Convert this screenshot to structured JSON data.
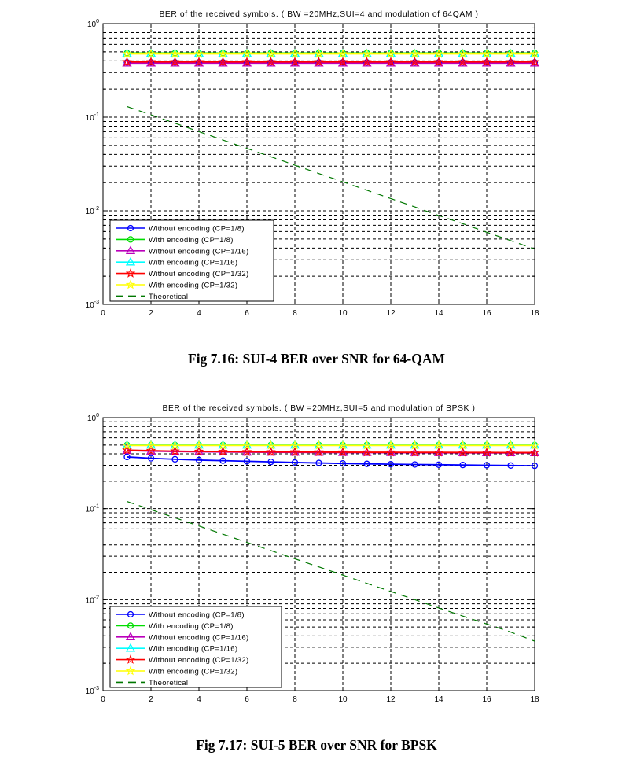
{
  "page": {
    "background": "#ffffff"
  },
  "figures": [
    {
      "caption": "Fig 7.16: SUI-4 BER over SNR for 64-QAM"
    },
    {
      "caption": "Fig 7.17: SUI-5 BER over SNR for BPSK"
    }
  ],
  "chart_data": [
    {
      "type": "line",
      "title": "BER of the received symbols. ( BW =20MHz,SUI=4 and modulation of 64QAM )",
      "xlabel": "",
      "ylabel": "",
      "yscale": "log",
      "xlim": [
        0,
        18
      ],
      "ylim": [
        0.001,
        1
      ],
      "xticks": [
        0,
        2,
        4,
        6,
        8,
        10,
        12,
        14,
        16,
        18
      ],
      "ytick_exponents": [
        0,
        -1,
        -2,
        -3
      ],
      "grid": "dashed-black-major-and-minor",
      "legend_position": "lower-left",
      "x": [
        1,
        2,
        3,
        4,
        5,
        6,
        7,
        8,
        9,
        10,
        11,
        12,
        13,
        14,
        15,
        16,
        17,
        18
      ],
      "series": [
        {
          "name": "Without encoding (CP=1/8)",
          "color": "#0000ff",
          "marker": "circle",
          "line": "solid",
          "values": [
            0.385,
            0.385,
            0.385,
            0.385,
            0.385,
            0.385,
            0.385,
            0.385,
            0.385,
            0.385,
            0.385,
            0.385,
            0.385,
            0.385,
            0.385,
            0.385,
            0.385,
            0.385
          ]
        },
        {
          "name": "With encoding (CP=1/8)",
          "color": "#00dd00",
          "marker": "circle",
          "line": "solid",
          "values": [
            0.485,
            0.485,
            0.485,
            0.485,
            0.485,
            0.485,
            0.485,
            0.485,
            0.485,
            0.485,
            0.485,
            0.485,
            0.485,
            0.485,
            0.485,
            0.485,
            0.485,
            0.485
          ]
        },
        {
          "name": "Without encoding (CP=1/16)",
          "color": "#bb00bb",
          "marker": "triangle",
          "line": "solid",
          "values": [
            0.378,
            0.378,
            0.378,
            0.378,
            0.378,
            0.378,
            0.378,
            0.378,
            0.378,
            0.378,
            0.378,
            0.378,
            0.378,
            0.378,
            0.378,
            0.378,
            0.378,
            0.378
          ]
        },
        {
          "name": "With encoding (CP=1/16)",
          "color": "#00ffff",
          "marker": "triangle",
          "line": "solid",
          "values": [
            0.48,
            0.48,
            0.48,
            0.48,
            0.48,
            0.48,
            0.48,
            0.48,
            0.48,
            0.48,
            0.48,
            0.48,
            0.48,
            0.48,
            0.48,
            0.48,
            0.48,
            0.48
          ]
        },
        {
          "name": "Without encoding (CP=1/32)",
          "color": "#ff0000",
          "marker": "star",
          "line": "solid",
          "values": [
            0.39,
            0.39,
            0.39,
            0.39,
            0.39,
            0.39,
            0.39,
            0.39,
            0.39,
            0.39,
            0.39,
            0.39,
            0.39,
            0.39,
            0.39,
            0.39,
            0.39,
            0.39
          ]
        },
        {
          "name": "With encoding (CP=1/32)",
          "color": "#ffff00",
          "marker": "star",
          "line": "solid",
          "values": [
            0.475,
            0.475,
            0.475,
            0.475,
            0.475,
            0.475,
            0.475,
            0.475,
            0.475,
            0.475,
            0.475,
            0.475,
            0.475,
            0.475,
            0.475,
            0.475,
            0.475,
            0.475
          ]
        },
        {
          "name": "Theoretical",
          "color": "#007700",
          "marker": "none",
          "line": "dashed",
          "values": [
            0.13,
            0.1058,
            0.0861,
            0.0701,
            0.057,
            0.0464,
            0.0378,
            0.0307,
            0.025,
            0.0204,
            0.0166,
            0.0135,
            0.011,
            0.0089,
            0.0073,
            0.0059,
            0.0048,
            0.0039
          ]
        }
      ]
    },
    {
      "type": "line",
      "title": "BER of the received symbols. ( BW =20MHz,SUI=5 and modulation of BPSK )",
      "xlabel": "",
      "ylabel": "",
      "yscale": "log",
      "xlim": [
        0,
        18
      ],
      "ylim": [
        0.001,
        1
      ],
      "xticks": [
        0,
        2,
        4,
        6,
        8,
        10,
        12,
        14,
        16,
        18
      ],
      "ytick_exponents": [
        0,
        -1,
        -2,
        -3
      ],
      "grid": "dashed-black-major-and-minor",
      "legend_position": "lower-left",
      "x": [
        1,
        2,
        3,
        4,
        5,
        6,
        7,
        8,
        9,
        10,
        11,
        12,
        13,
        14,
        15,
        16,
        17,
        18
      ],
      "series": [
        {
          "name": "Without encoding (CP=1/8)",
          "color": "#0000ff",
          "marker": "circle",
          "line": "solid",
          "values": [
            0.37,
            0.358,
            0.349,
            0.342,
            0.337,
            0.332,
            0.327,
            0.322,
            0.318,
            0.314,
            0.311,
            0.308,
            0.306,
            0.304,
            0.302,
            0.3,
            0.298,
            0.296
          ]
        },
        {
          "name": "With encoding (CP=1/8)",
          "color": "#00dd00",
          "marker": "circle",
          "line": "solid",
          "values": [
            0.5,
            0.5,
            0.5,
            0.5,
            0.5,
            0.5,
            0.5,
            0.5,
            0.5,
            0.5,
            0.5,
            0.5,
            0.5,
            0.5,
            0.5,
            0.5,
            0.5,
            0.5
          ]
        },
        {
          "name": "Without encoding (CP=1/16)",
          "color": "#bb00bb",
          "marker": "triangle",
          "line": "solid",
          "values": [
            0.435,
            0.428,
            0.424,
            0.421,
            0.419,
            0.417,
            0.416,
            0.415,
            0.414,
            0.413,
            0.413,
            0.412,
            0.412,
            0.411,
            0.411,
            0.41,
            0.41,
            0.41
          ]
        },
        {
          "name": "With encoding (CP=1/16)",
          "color": "#00ffff",
          "marker": "triangle",
          "line": "solid",
          "values": [
            0.498,
            0.498,
            0.498,
            0.498,
            0.498,
            0.498,
            0.498,
            0.498,
            0.498,
            0.498,
            0.498,
            0.498,
            0.498,
            0.498,
            0.498,
            0.498,
            0.498,
            0.498
          ]
        },
        {
          "name": "Without encoding (CP=1/32)",
          "color": "#ff0000",
          "marker": "star",
          "line": "solid",
          "values": [
            0.44,
            0.433,
            0.428,
            0.425,
            0.423,
            0.421,
            0.42,
            0.419,
            0.418,
            0.417,
            0.416,
            0.416,
            0.415,
            0.415,
            0.414,
            0.414,
            0.413,
            0.413
          ]
        },
        {
          "name": "With encoding (CP=1/32)",
          "color": "#ffff00",
          "marker": "star",
          "line": "solid",
          "values": [
            0.495,
            0.495,
            0.495,
            0.495,
            0.495,
            0.495,
            0.495,
            0.495,
            0.495,
            0.495,
            0.495,
            0.495,
            0.495,
            0.495,
            0.495,
            0.495,
            0.495,
            0.495
          ]
        },
        {
          "name": "Theoretical",
          "color": "#007700",
          "marker": "none",
          "line": "dashed",
          "values": [
            0.12,
            0.0975,
            0.0793,
            0.0645,
            0.0524,
            0.0426,
            0.0346,
            0.0281,
            0.0229,
            0.0186,
            0.0151,
            0.0123,
            0.01,
            0.0081,
            0.0066,
            0.0054,
            0.0044,
            0.0035
          ]
        }
      ]
    }
  ]
}
